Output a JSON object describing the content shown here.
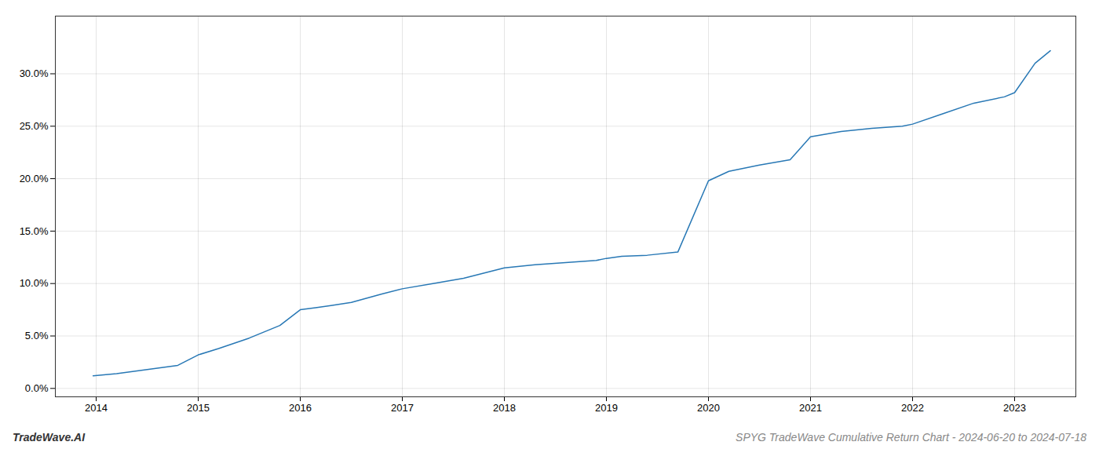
{
  "chart_data": {
    "type": "line",
    "title": "SPYG TradeWave Cumulative Return Chart - 2024-06-20 to 2024-07-18",
    "annotations": [
      "TradeWave.AI"
    ],
    "x": [
      2013.97,
      2014.2,
      2014.5,
      2014.8,
      2015.0,
      2015.2,
      2015.5,
      2015.8,
      2016.0,
      2016.15,
      2016.3,
      2016.5,
      2016.8,
      2017.0,
      2017.3,
      2017.6,
      2018.0,
      2018.3,
      2018.6,
      2018.9,
      2019.0,
      2019.15,
      2019.4,
      2019.7,
      2020.0,
      2020.2,
      2020.5,
      2020.8,
      2021.0,
      2021.3,
      2021.6,
      2021.9,
      2022.0,
      2022.3,
      2022.6,
      2022.9,
      2023.0,
      2023.2,
      2023.35
    ],
    "values": [
      0.012,
      0.014,
      0.018,
      0.022,
      0.032,
      0.038,
      0.048,
      0.06,
      0.075,
      0.077,
      0.079,
      0.082,
      0.09,
      0.095,
      0.1,
      0.105,
      0.115,
      0.118,
      0.12,
      0.122,
      0.124,
      0.126,
      0.127,
      0.13,
      0.198,
      0.207,
      0.213,
      0.218,
      0.24,
      0.245,
      0.248,
      0.25,
      0.252,
      0.262,
      0.272,
      0.278,
      0.282,
      0.31,
      0.322
    ],
    "color": "#2878b5",
    "xlim": [
      2013.6,
      2023.6
    ],
    "xticks": [
      2014,
      2015,
      2016,
      2017,
      2018,
      2019,
      2020,
      2021,
      2022,
      2023
    ],
    "ylim": [
      -0.008,
      0.355
    ],
    "yticks": [
      {
        "value": 0.0,
        "label": "0.0%"
      },
      {
        "value": 0.05,
        "label": "5.0%"
      },
      {
        "value": 0.1,
        "label": "10.0%"
      },
      {
        "value": 0.15,
        "label": "15.0%"
      },
      {
        "value": 0.2,
        "label": "20.0%"
      },
      {
        "value": 0.25,
        "label": "25.0%"
      },
      {
        "value": 0.3,
        "label": "30.0%"
      }
    ],
    "grid": true
  }
}
